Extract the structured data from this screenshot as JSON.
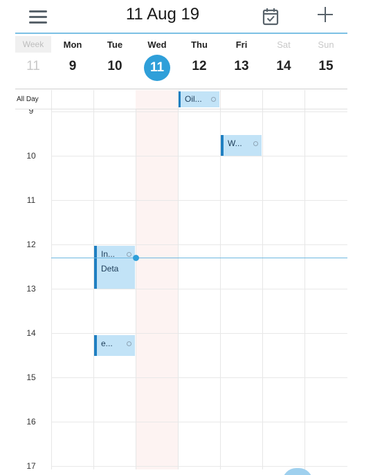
{
  "header": {
    "title": "11 Aug 19",
    "menu_icon": "hamburger-menu-icon",
    "today_icon": "calendar-check-icon",
    "add_icon": "plus-icon"
  },
  "week_column": {
    "label": "Week",
    "number": "11"
  },
  "days": [
    {
      "name": "Mon",
      "number": "9"
    },
    {
      "name": "Tue",
      "number": "10"
    },
    {
      "name": "Wed",
      "number": "11"
    },
    {
      "name": "Thu",
      "number": "12"
    },
    {
      "name": "Fri",
      "number": "13"
    },
    {
      "name": "Sat",
      "number": "14"
    },
    {
      "name": "Sun",
      "number": "15"
    }
  ],
  "allday": {
    "label": "All Day",
    "events": [
      {
        "title": "Oil...",
        "day": "Thu"
      }
    ]
  },
  "hours": [
    "9",
    "10",
    "11",
    "12",
    "13",
    "14",
    "15",
    "16",
    "17"
  ],
  "events": [
    {
      "title": "W...",
      "day": "Fri"
    },
    {
      "title": "In...",
      "detail": "Deta",
      "day": "Tue"
    },
    {
      "title": "e...",
      "day": "Tue"
    }
  ],
  "colors": {
    "accent": "#2f9fd9",
    "event_bg": "#c2e3f7",
    "event_border": "#1f7fc1",
    "today_band": "#fdf3f2"
  }
}
